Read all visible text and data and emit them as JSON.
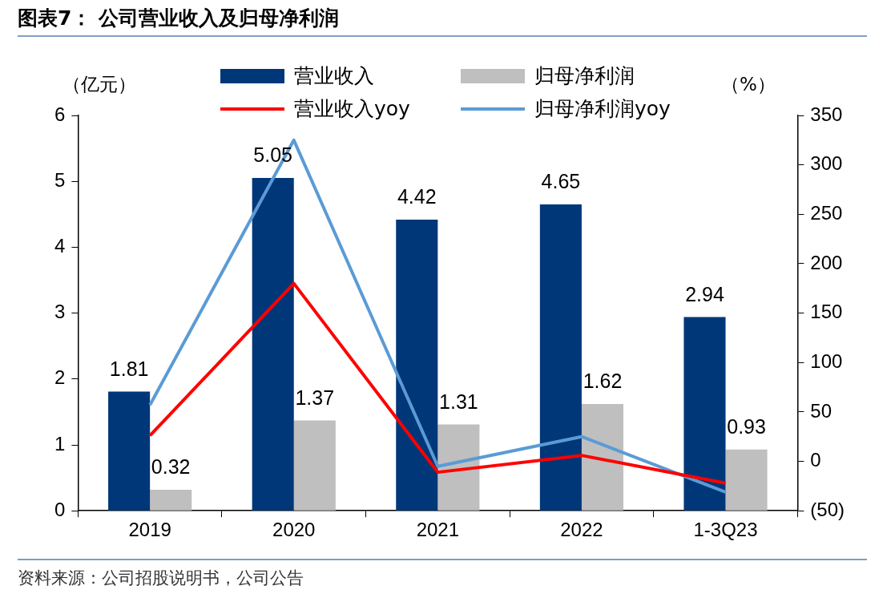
{
  "chart_data": {
    "type": "bar",
    "title": "图表7：  公司营业收入及归母净利润",
    "ylabel": "（亿元）",
    "y2label": "（%）",
    "categories": [
      "2019",
      "2020",
      "2021",
      "2022",
      "1-3Q23"
    ],
    "series": [
      {
        "name": "营业收入",
        "color": "#003778",
        "values": [
          1.81,
          5.05,
          4.42,
          4.65,
          2.94
        ],
        "value_labels": [
          "1.81",
          "5.05",
          "4.42",
          "4.65",
          "2.94"
        ]
      },
      {
        "name": "归母净利润",
        "color": "#bfbfbf",
        "values": [
          0.32,
          1.37,
          1.31,
          1.62,
          0.93
        ],
        "value_labels": [
          "0.32",
          "1.37",
          "1.31",
          "1.62",
          "0.93"
        ]
      },
      {
        "name": "营业收入yoy",
        "type": "line",
        "axis": "y2",
        "color": "#ff0000",
        "values": [
          26,
          180,
          -11,
          6,
          -22
        ]
      },
      {
        "name": "归母净利润yoy",
        "type": "line",
        "axis": "y2",
        "color": "#5b9bd5",
        "values": [
          57,
          325,
          -5,
          25,
          -31
        ]
      }
    ],
    "ylim": [
      0,
      6
    ],
    "yticks": [
      0,
      1,
      2,
      3,
      4,
      5,
      6
    ],
    "y2lim": [
      -50,
      350
    ],
    "y2ticks": [
      {
        "value": -50,
        "label": "(50)"
      },
      0,
      50,
      100,
      150,
      200,
      250,
      300,
      350
    ],
    "grid": false,
    "legend": "top",
    "marker": "none",
    "annotations": [
      "资料来源：公司招股说明书，公司公告"
    ]
  }
}
